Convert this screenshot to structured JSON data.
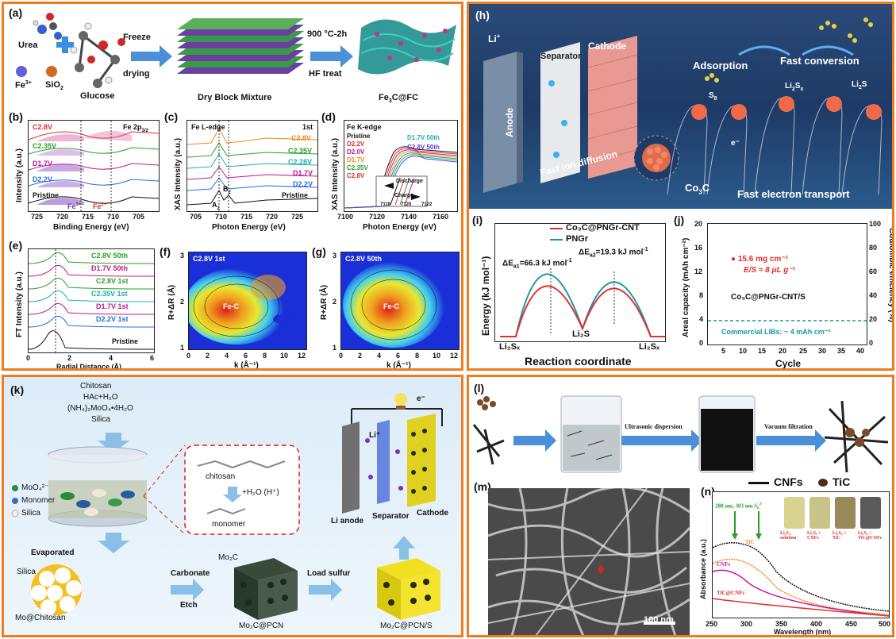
{
  "colors": {
    "frame": "#f07c1e",
    "red": "#e0302a",
    "teal": "#1b95a6",
    "blue": "#2a6de0",
    "green": "#2aa02a"
  },
  "panel_a": {
    "label": "(a)",
    "urea": "Urea",
    "fe": "Fe",
    "fe_sup": "3+",
    "sio2": "SiO",
    "sio2_sub": "2",
    "glucose": "Glucose",
    "step1": "Freeze",
    "step1b": "drying",
    "mixture": "Dry Block Mixture",
    "step2": "900 °C-2h",
    "step2b": "HF treat",
    "product": "Fe",
    "product_sub": "3",
    "product_tail": "C@FC"
  },
  "panel_b": {
    "label": "(b)",
    "title": "Fe 2p",
    "title_sub": "3/2",
    "ylabel": "Intensity (a.u.)",
    "xlabel": "Binding Energy (eV)",
    "xticks": [
      "725",
      "720",
      "715",
      "710",
      "705"
    ],
    "traces": [
      "C2.8V",
      "C2.35V",
      "D1.7V",
      "D2.2V",
      "Pristine"
    ],
    "fe3": "Fe",
    "fe3_sup": "3+",
    "fe2": "Fe",
    "fe2_sup": "2+"
  },
  "panel_c": {
    "label": "(c)",
    "title": "Fe L-edge",
    "cycle": "1st",
    "ylabel": "XAS Intensity (a.u.)",
    "xlabel": "Photon Energy (eV)",
    "xticks": [
      "705",
      "710",
      "715",
      "720",
      "725"
    ],
    "traces": [
      "C2.8V",
      "C2.35V",
      "C2.28V",
      "D1.7V",
      "D2.2V",
      "Pristine"
    ],
    "a2": "A",
    "a2_sub": "2",
    "b2": "B",
    "b2_sub": "2"
  },
  "panel_d": {
    "label": "(d)",
    "title": "Fe K-edge",
    "ylabel": "XAS Intensity (a.u.)",
    "xlabel": "Photon Energy (eV)",
    "xticks": [
      "7100",
      "7120",
      "7140",
      "7160"
    ],
    "inset_ticks": [
      "7118",
      "7120",
      "7122"
    ],
    "legend_left": [
      "Pristine",
      "D2.2V",
      "D2.0V",
      "D1.7V",
      "C2.35V",
      "C2.8V"
    ],
    "legend_right": [
      "D1.7V 50th",
      "C2.8V 50th"
    ],
    "discharge": "Discharge",
    "charge": "Charge"
  },
  "panel_e": {
    "label": "(e)",
    "ylabel": "FT Intensity (a.u.)",
    "xlabel": "Radial Distance (Å)",
    "xticks": [
      "0",
      "2",
      "4",
      "6"
    ],
    "traces": [
      "C2.8V 50th",
      "D1.7V 50th",
      "C2.8V 1st",
      "C2.35V 1st",
      "D1.7V 1st",
      "D2.2V 1st",
      "Pristine"
    ]
  },
  "panel_f": {
    "label": "(f)",
    "title": "C2.8V 1st",
    "peak": "Fe-C",
    "ylabel": "R+ΔR (Å)",
    "xlabel": "k (Å⁻¹)",
    "xticks": [
      "0",
      "2",
      "4",
      "6",
      "8",
      "10",
      "12"
    ],
    "yticks": [
      "3",
      "2",
      "1"
    ]
  },
  "panel_g": {
    "label": "(g)",
    "title": "C2.8V 50th",
    "peak": "Fe-C",
    "ylabel": "R+ΔR (Å)",
    "xlabel": "k (Å⁻¹)",
    "xticks": [
      "0",
      "2",
      "4",
      "6",
      "8",
      "10",
      "12"
    ],
    "yticks": [
      "3",
      "2",
      "1"
    ]
  },
  "panel_h": {
    "label": "(h)",
    "li": "Li",
    "li_sup": "+",
    "anode": "Anode",
    "separator": "Separator",
    "cathode": "Cathode",
    "adsorption": "Adsorption",
    "fast_conversion": "Fast conversion",
    "s8": "S",
    "s8_sub": "8",
    "li2sx": "Li",
    "li2sx_sub": "2",
    "li2sx_tail": "S",
    "li2sx_sub2": "x",
    "li2s": "Li",
    "li2s_sub": "2",
    "li2s_tail": "S",
    "fast_ion": "Fast ion diffusion",
    "co3c": "Co",
    "co3c_sub": "3",
    "co3c_tail": "C",
    "fast_electron": "Fast electron transport",
    "e_minus": "e⁻"
  },
  "panel_i": {
    "label": "(i)",
    "legend": [
      "Co₃C@PNGr-CNT",
      "PNGr"
    ],
    "ea1": "ΔE",
    "ea1_sub": "a1",
    "ea1_val": "=66.3 kJ mol",
    "ea1_sup": "-1",
    "ea2": "ΔE",
    "ea2_sub": "a2",
    "ea2_val": "=19.3 kJ mol",
    "ea2_sup": "-1",
    "ylabel": "Energy (kJ mol⁻¹)",
    "xlabel": "Reaction coordinate",
    "states": [
      "Li₂Sₓ",
      "Li₂S",
      "Li₂Sₓ"
    ]
  },
  "panel_j": {
    "label": "(j)",
    "ylabel_left": "Areal capacity (mAh cm⁻²)",
    "ylabel_right": "Coulombic efficiency (%)",
    "xlabel": "Cycle",
    "loading": "15.6 mg cm⁻²",
    "es": "E/S ≈ 8 μL g⁻¹",
    "sample": "Co₃C@PNGr-CNT/S",
    "commercial": "Commercial LIBs: ~ 4 mAh cm⁻²",
    "xticks": [
      "5",
      "10",
      "15",
      "20",
      "25",
      "30",
      "35",
      "40"
    ],
    "yticks_left": [
      "20",
      "16",
      "12",
      "8",
      "4",
      "0"
    ],
    "yticks_right": [
      "100",
      "80",
      "60",
      "40",
      "20",
      "0"
    ]
  },
  "panel_k": {
    "label": "(k)",
    "reagents": [
      "Chitosan",
      "HAc+H₂O",
      "(NH₄)₂MoO₄•4H₂O",
      "Silica"
    ],
    "legend": [
      "MoO₄²⁻",
      "Monomer",
      "Silica"
    ],
    "chitosan": "chitosan",
    "h2o": "+H₂O (H⁺)",
    "monomer": "monomer",
    "evaporated": "Evaporated",
    "silica": "Silica",
    "mo_chitosan": "Mo@Chitosan",
    "carbonate": "Carbonate",
    "etch": "Etch",
    "mo2c": "Mo₂C",
    "mo2c_pcn": "Mo₂C@PCN",
    "load_sulfur": "Load sulfur",
    "mo2c_pcn_s": "Mo₂C@PCN/S",
    "li_anode": "Li anode",
    "separator": "Separator",
    "cathode": "Cathode",
    "li_plus": "Li⁺",
    "e_minus": "e⁻"
  },
  "panel_l": {
    "label": "(l)",
    "ultrasonic": "Ultrasonic  dispersion",
    "vacuum": "Vacuum filtration",
    "legend_cnf": "CNFs",
    "legend_tic": "TiC"
  },
  "panel_m": {
    "label": "(m)",
    "scalebar": "100 nm"
  },
  "panel_n": {
    "label": "(n)",
    "peak_note": "288 nm, 303 nm S",
    "peak_sub": "6",
    "peak_sup": "2-",
    "ylabel": "Absorbance (a.u.)",
    "xlabel": "Wavelength (nm)",
    "xticks": [
      "250",
      "300",
      "350",
      "400",
      "450",
      "500"
    ],
    "curves": [
      "TiC",
      "CNFs",
      "TiC@CNFs"
    ],
    "vials": [
      "Li₂S₆ solution",
      "Li₂S₆ + CNFs",
      "Li₂S₆ + TiC",
      "Li₂S₆ + TiC@CNFs"
    ]
  }
}
